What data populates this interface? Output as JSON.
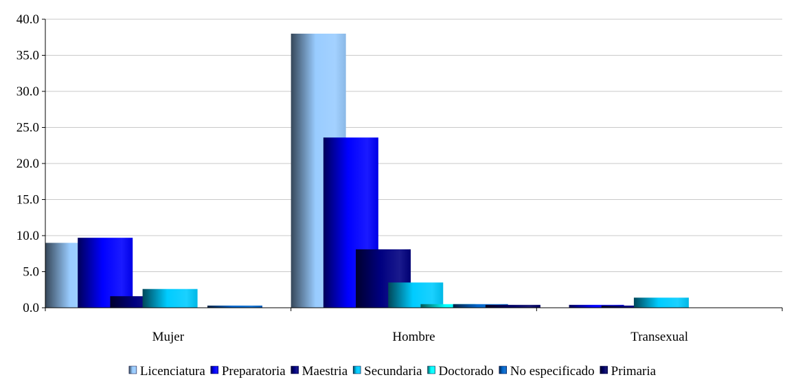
{
  "chart_data": {
    "type": "bar",
    "categories": [
      "Mujer",
      "Hombre",
      "Transexual"
    ],
    "ylim": [
      0,
      40
    ],
    "yticks": [
      "0.0",
      "5.0",
      "10.0",
      "15.0",
      "20.0",
      "25.0",
      "30.0",
      "35.0",
      "40.0"
    ],
    "grid": true,
    "legend_position": "bottom",
    "series": [
      {
        "name": "Licenciatura",
        "values": [
          9.0,
          38.0,
          0.0
        ],
        "color": "#99ccff"
      },
      {
        "name": "Preparatoria",
        "values": [
          9.7,
          23.6,
          0.4
        ],
        "color": "#0000ff"
      },
      {
        "name": "Maestria",
        "values": [
          1.6,
          8.1,
          0.3
        ],
        "color": "#000080"
      },
      {
        "name": "Secundaria",
        "values": [
          2.6,
          3.5,
          1.4
        ],
        "color": "#00ccff"
      },
      {
        "name": "Doctorado",
        "values": [
          0.0,
          0.5,
          0.0
        ],
        "color": "#00ffff"
      },
      {
        "name": "No especificado",
        "values": [
          0.3,
          0.5,
          0.0
        ],
        "color": "#0066cc"
      },
      {
        "name": "Primaria",
        "values": [
          0.0,
          0.4,
          0.0
        ],
        "color": "#000066"
      }
    ]
  }
}
